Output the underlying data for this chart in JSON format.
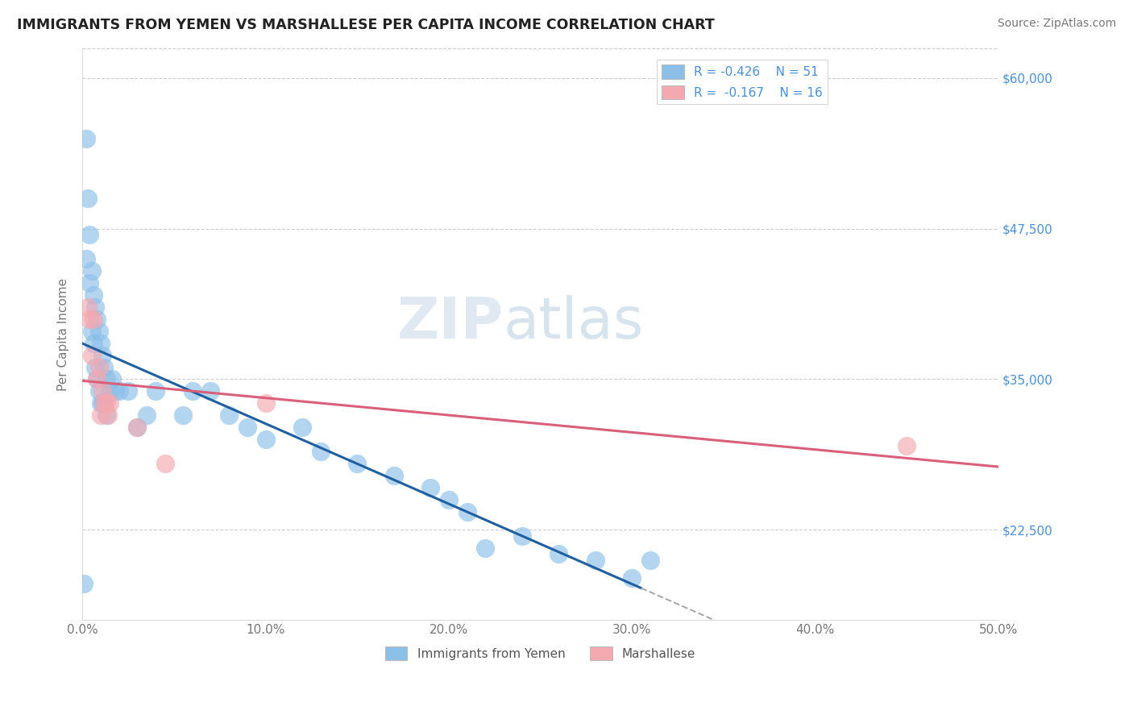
{
  "title": "IMMIGRANTS FROM YEMEN VS MARSHALLESE PER CAPITA INCOME CORRELATION CHART",
  "source": "Source: ZipAtlas.com",
  "xlabel": "",
  "ylabel": "Per Capita Income",
  "xlim": [
    0.0,
    0.5
  ],
  "ylim": [
    15000,
    62500
  ],
  "yticks": [
    22500,
    35000,
    47500,
    60000
  ],
  "ytick_labels": [
    "$22,500",
    "$35,000",
    "$47,500",
    "$60,000"
  ],
  "xticks": [
    0.0,
    0.1,
    0.2,
    0.3,
    0.4,
    0.5
  ],
  "xtick_labels": [
    "0.0%",
    "10.0%",
    "20.0%",
    "30.0%",
    "40.0%",
    "50.0%"
  ],
  "legend_label1": "Immigrants from Yemen",
  "legend_label2": "Marshallese",
  "blue_color": "#8bbfe8",
  "pink_color": "#f4a8b0",
  "line_blue": "#2060a0",
  "line_pink": "#d95f7a",
  "line_dashed": "#aaaaaa",
  "watermark_zip": "ZIP",
  "watermark_atlas": "atlas",
  "title_color": "#222222",
  "axis_label_color": "#777777",
  "tick_color_right": "#4a90d9",
  "background_color": "#ffffff",
  "grid_color": "#cccccc",
  "yemen_x": [
    0.001,
    0.002,
    0.002,
    0.003,
    0.004,
    0.004,
    0.005,
    0.005,
    0.006,
    0.006,
    0.007,
    0.007,
    0.008,
    0.008,
    0.009,
    0.009,
    0.01,
    0.01,
    0.011,
    0.011,
    0.012,
    0.012,
    0.013,
    0.013,
    0.015,
    0.016,
    0.018,
    0.02,
    0.025,
    0.03,
    0.035,
    0.04,
    0.055,
    0.06,
    0.07,
    0.08,
    0.09,
    0.1,
    0.12,
    0.13,
    0.15,
    0.17,
    0.19,
    0.2,
    0.21,
    0.22,
    0.24,
    0.26,
    0.28,
    0.3,
    0.31
  ],
  "yemen_y": [
    18000,
    45000,
    55000,
    50000,
    43000,
    47000,
    39000,
    44000,
    38000,
    42000,
    36000,
    41000,
    35000,
    40000,
    34000,
    39000,
    33000,
    38000,
    33000,
    37000,
    33000,
    36000,
    32000,
    35000,
    34000,
    35000,
    34000,
    34000,
    34000,
    31000,
    32000,
    34000,
    32000,
    34000,
    34000,
    32000,
    31000,
    30000,
    31000,
    29000,
    28000,
    27000,
    26000,
    25000,
    24000,
    21000,
    22000,
    20500,
    20000,
    18500,
    20000
  ],
  "marsh_x": [
    0.003,
    0.004,
    0.005,
    0.006,
    0.008,
    0.009,
    0.01,
    0.011,
    0.012,
    0.013,
    0.014,
    0.015,
    0.03,
    0.045,
    0.1,
    0.45
  ],
  "marsh_y": [
    41000,
    40000,
    37000,
    40000,
    35000,
    36000,
    32000,
    34000,
    33000,
    33000,
    32000,
    33000,
    31000,
    28000,
    33000,
    29500
  ]
}
